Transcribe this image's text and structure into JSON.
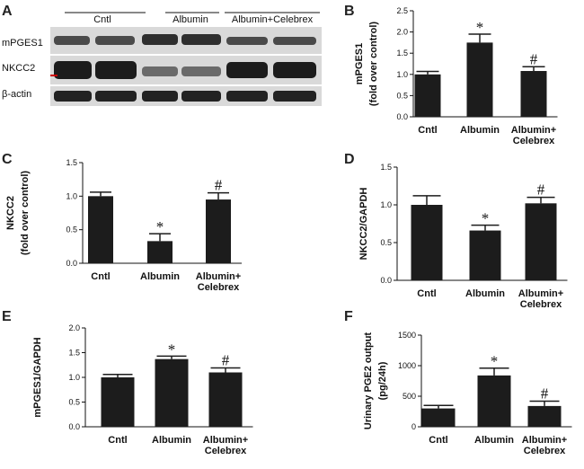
{
  "figure": {
    "panel_a": {
      "label": "A",
      "groups": [
        "Cntl",
        "Albumin",
        "Albumin+Celebrex"
      ],
      "rows": [
        "mPGES1",
        "NKCC2",
        "β-actin"
      ]
    }
  },
  "chart_data": [
    {
      "panel": "B",
      "type": "bar",
      "categories": [
        "Cntl",
        "Albumin",
        "Albumin+ Celebrex"
      ],
      "values": [
        1.0,
        1.75,
        1.08
      ],
      "errors": [
        0.07,
        0.2,
        0.1
      ],
      "annotations": [
        "",
        "*",
        "#"
      ],
      "ylabel_lines": [
        "mPGES1",
        "(fold over control)"
      ],
      "ylim": [
        0,
        2.5
      ],
      "ticks": [
        "0.0",
        "0.5",
        "1.0",
        "1.5",
        "2.0",
        "2.5"
      ]
    },
    {
      "panel": "C",
      "type": "bar",
      "categories": [
        "Cntl",
        "Albumin",
        "Albumin+ Celebrex"
      ],
      "values": [
        1.0,
        0.33,
        0.95
      ],
      "errors": [
        0.06,
        0.11,
        0.1
      ],
      "annotations": [
        "",
        "*",
        "#"
      ],
      "ylabel_lines": [
        "NKCC2",
        "(fold over control)"
      ],
      "ylim": [
        0,
        1.5
      ],
      "ticks": [
        "0.0",
        "0.5",
        "1.0",
        "1.5"
      ]
    },
    {
      "panel": "D",
      "type": "bar",
      "categories": [
        "Cntl",
        "Albumin",
        "Albumin+ Celebrex"
      ],
      "values": [
        1.0,
        0.66,
        1.02
      ],
      "errors": [
        0.12,
        0.07,
        0.08
      ],
      "annotations": [
        "",
        "*",
        "#"
      ],
      "ylabel_lines": [
        "NKCC2/GAPDH"
      ],
      "ylim": [
        0,
        1.5
      ],
      "ticks": [
        "0.0",
        "0.5",
        "1.0",
        "1.5"
      ]
    },
    {
      "panel": "E",
      "type": "bar",
      "categories": [
        "Cntl",
        "Albumin",
        "Albumin+ Celebrex"
      ],
      "values": [
        1.0,
        1.37,
        1.1
      ],
      "errors": [
        0.06,
        0.06,
        0.09
      ],
      "annotations": [
        "",
        "*",
        "#"
      ],
      "ylabel_lines": [
        "mPGES1/GAPDH"
      ],
      "ylim": [
        0,
        2.0
      ],
      "ticks": [
        "0.0",
        "0.5",
        "1.0",
        "1.5",
        "2.0"
      ]
    },
    {
      "panel": "F",
      "type": "bar",
      "categories": [
        "Cntl",
        "Albumin",
        "Albumin+ Celebrex"
      ],
      "values": [
        300,
        840,
        340
      ],
      "errors": [
        50,
        120,
        80
      ],
      "annotations": [
        "",
        "*",
        "#"
      ],
      "ylabel_lines": [
        "Urinary PGE2 output",
        "(pg/24h)"
      ],
      "ylim": [
        0,
        1500
      ],
      "ticks": [
        "0",
        "500",
        "1000",
        "1500"
      ]
    }
  ]
}
